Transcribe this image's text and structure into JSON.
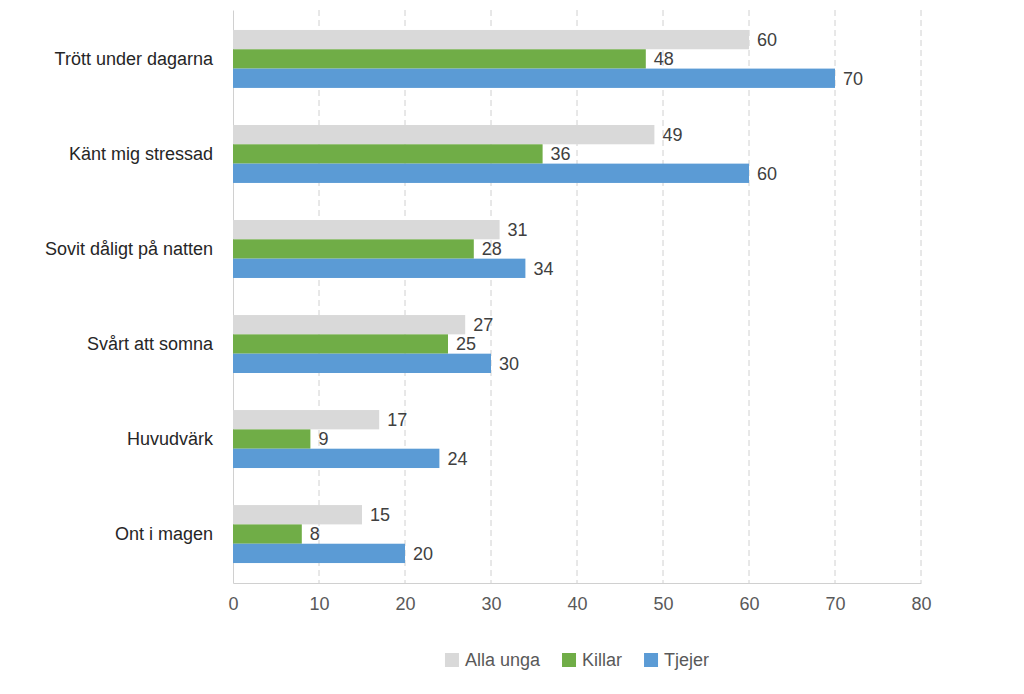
{
  "chart_data": {
    "type": "bar",
    "orientation": "horizontal",
    "categories": [
      "Trött under dagarna",
      "Känt mig stressad",
      "Sovit dåligt på natten",
      "Svårt att somna",
      "Huvudvärk",
      "Ont i magen"
    ],
    "series": [
      {
        "name": "Alla unga",
        "color": "#d9d9d9",
        "values": [
          60,
          49,
          31,
          27,
          17,
          15
        ]
      },
      {
        "name": "Killar",
        "color": "#70ad47",
        "values": [
          48,
          36,
          28,
          25,
          9,
          8
        ]
      },
      {
        "name": "Tjejer",
        "color": "#5b9bd5",
        "values": [
          70,
          60,
          34,
          30,
          24,
          20
        ]
      }
    ],
    "xlim": [
      0,
      80
    ],
    "xticks": [
      0,
      10,
      20,
      30,
      40,
      50,
      60,
      70,
      80
    ],
    "grid": true,
    "data_labels": true,
    "legend": "bottom"
  }
}
